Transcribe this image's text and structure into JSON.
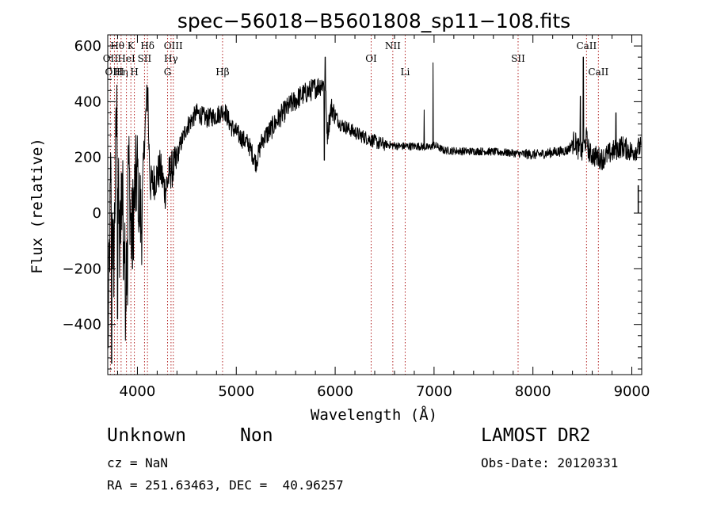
{
  "chart_data": {
    "type": "line",
    "title": "spec−56018−B5601808_sp11−108.fits",
    "xlabel": "Wavelength (Å)",
    "ylabel": "Flux (relative)",
    "xlim": [
      3700,
      9100
    ],
    "ylim": [
      -580,
      640
    ],
    "x_ticks": [
      4000,
      5000,
      6000,
      7000,
      8000,
      9000
    ],
    "x_tick_labels": [
      "4000",
      "5000",
      "6000",
      "7000",
      "8000",
      "9000"
    ],
    "y_ticks": [
      -400,
      -200,
      0,
      200,
      400,
      600
    ],
    "y_tick_labels": [
      "−400",
      "−200",
      "0",
      "200",
      "400",
      "600"
    ],
    "line_marks": [
      {
        "label": "Hθ",
        "x": 3798,
        "row": 1
      },
      {
        "label": "OII",
        "x": 3727,
        "row": 2
      },
      {
        "label": "OIII",
        "x": 3768,
        "row": 3
      },
      {
        "label": "Hη",
        "x": 3835,
        "row": 3
      },
      {
        "label": "HeI",
        "x": 3889,
        "row": 2
      },
      {
        "label": "K",
        "x": 3934,
        "row": 1
      },
      {
        "label": "H",
        "x": 3969,
        "row": 3
      },
      {
        "label": "SII",
        "x": 4072,
        "row": 2
      },
      {
        "label": "Hδ",
        "x": 4102,
        "row": 1
      },
      {
        "label": "OIII",
        "x": 4363,
        "row": 1
      },
      {
        "label": "Hγ",
        "x": 4340,
        "row": 2
      },
      {
        "label": "G",
        "x": 4305,
        "row": 3
      },
      {
        "label": "Hβ",
        "x": 4861,
        "row": 3
      },
      {
        "label": "OI",
        "x": 6364,
        "row": 2
      },
      {
        "label": "NII",
        "x": 6583,
        "row": 1
      },
      {
        "label": "Li",
        "x": 6708,
        "row": 3
      },
      {
        "label": "SII",
        "x": 7850,
        "row": 2
      },
      {
        "label": "CaII",
        "x": 8542,
        "row": 1
      },
      {
        "label": "CaII",
        "x": 8662,
        "row": 3
      }
    ],
    "spectrum_anchors": [
      [
        3700,
        -520
      ],
      [
        3730,
        120
      ],
      [
        3760,
        -200
      ],
      [
        3790,
        380
      ],
      [
        3820,
        -150
      ],
      [
        3850,
        150
      ],
      [
        3880,
        -300
      ],
      [
        3910,
        200
      ],
      [
        3940,
        -100
      ],
      [
        3970,
        60
      ],
      [
        4000,
        150
      ],
      [
        4040,
        -50
      ],
      [
        4070,
        260
      ],
      [
        4100,
        430
      ],
      [
        4130,
        100
      ],
      [
        4180,
        120
      ],
      [
        4230,
        160
      ],
      [
        4280,
        80
      ],
      [
        4330,
        150
      ],
      [
        4380,
        170
      ],
      [
        4430,
        240
      ],
      [
        4500,
        310
      ],
      [
        4600,
        360
      ],
      [
        4700,
        340
      ],
      [
        4800,
        350
      ],
      [
        4880,
        370
      ],
      [
        4950,
        310
      ],
      [
        5050,
        270
      ],
      [
        5120,
        250
      ],
      [
        5200,
        180
      ],
      [
        5260,
        260
      ],
      [
        5350,
        300
      ],
      [
        5450,
        350
      ],
      [
        5550,
        390
      ],
      [
        5650,
        420
      ],
      [
        5750,
        440
      ],
      [
        5850,
        460
      ],
      [
        5900,
        470
      ],
      [
        5920,
        280
      ],
      [
        5960,
        380
      ],
      [
        6050,
        320
      ],
      [
        6150,
        300
      ],
      [
        6250,
        280
      ],
      [
        6350,
        265
      ],
      [
        6450,
        250
      ],
      [
        6550,
        245
      ],
      [
        6650,
        240
      ],
      [
        6750,
        240
      ],
      [
        6850,
        240
      ],
      [
        6950,
        235
      ],
      [
        7000,
        245
      ],
      [
        7100,
        225
      ],
      [
        7300,
        222
      ],
      [
        7500,
        222
      ],
      [
        7700,
        218
      ],
      [
        7900,
        212
      ],
      [
        8050,
        210
      ],
      [
        8200,
        218
      ],
      [
        8350,
        225
      ],
      [
        8420,
        260
      ],
      [
        8460,
        230
      ],
      [
        8500,
        215
      ],
      [
        8540,
        270
      ],
      [
        8570,
        215
      ],
      [
        8620,
        205
      ],
      [
        8700,
        195
      ],
      [
        8800,
        220
      ],
      [
        8900,
        240
      ],
      [
        9000,
        220
      ],
      [
        9100,
        240
      ]
    ],
    "spectrum_spikes": [
      [
        3740,
        -540
      ],
      [
        3800,
        -380
      ],
      [
        3860,
        -240
      ],
      [
        3900,
        -330
      ],
      [
        3950,
        -200
      ],
      [
        4010,
        -30
      ],
      [
        4105,
        450
      ],
      [
        5900,
        560
      ],
      [
        5890,
        190
      ],
      [
        6900,
        370
      ],
      [
        6990,
        540
      ],
      [
        8480,
        420
      ],
      [
        8510,
        560
      ],
      [
        8840,
        360
      ],
      [
        9060,
        250
      ]
    ]
  },
  "info": {
    "object_type": "Unknown",
    "class": "Non",
    "cz": "cz = NaN",
    "radec": "RA = 251.63463, DEC =  40.96257",
    "survey": "LAMOST DR2",
    "obs_date": "Obs-Date: 20120331"
  }
}
